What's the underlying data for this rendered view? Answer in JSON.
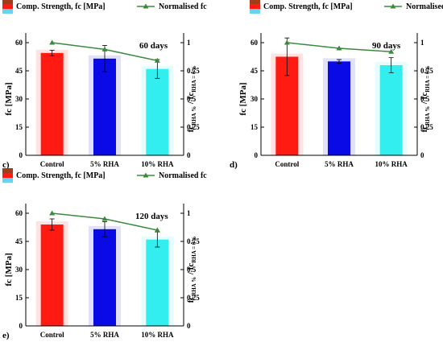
{
  "figure": {
    "legend": {
      "bars": "Comp. Strength, fc [MPa]",
      "line": "Normalised fc"
    },
    "y_label_left": "fc [MPa]",
    "y_label_right_main": "fc",
    "y_label_right_sub1": "RHA %",
    "y_label_right_mid": " / fc",
    "y_label_right_sub2": "RHA = 0%"
  },
  "colors": {
    "control": "#ff1a12",
    "rha5": "#0a0ae6",
    "rha10": "#33eeee",
    "line": "#3b8a3b",
    "legend_swatch_dark": "#a33c1a",
    "legend_swatch_red": "#ff1a12",
    "legend_swatch_light": "#69d2ee"
  },
  "chart_data": [
    {
      "type": "bar",
      "panel": "c)",
      "annotation": "60 days",
      "categories": [
        "Control",
        "5% RHA",
        "10% RHA"
      ],
      "series": [
        {
          "name": "Comp. Strength, fc [MPa]",
          "values": [
            54.5,
            51.5,
            46
          ],
          "errors": [
            1.5,
            7,
            5
          ]
        },
        {
          "name": "Normalised fc",
          "values": [
            1.0,
            0.94,
            0.84
          ],
          "axis": "right"
        }
      ],
      "y_left": {
        "lim": [
          0,
          60
        ],
        "ticks": [
          "0",
          "15",
          "30",
          "45",
          "60"
        ]
      },
      "y_right": {
        "lim": [
          0,
          1
        ],
        "ticks": [
          "0",
          "0.25",
          "0.5",
          "0.75",
          "1"
        ]
      }
    },
    {
      "type": "bar",
      "panel": "d)",
      "annotation": "90 days",
      "categories": [
        "Control",
        "5% RHA",
        "10% RHA"
      ],
      "series": [
        {
          "name": "Comp. Strength, fc [MPa]",
          "values": [
            52.5,
            50,
            48
          ],
          "errors": [
            10,
            1,
            4
          ]
        },
        {
          "name": "Normalised fc",
          "values": [
            1.0,
            0.95,
            0.92
          ],
          "axis": "right"
        }
      ],
      "y_left": {
        "lim": [
          0,
          60
        ],
        "ticks": [
          "0",
          "15",
          "30",
          "45",
          "60"
        ]
      },
      "y_right": {
        "lim": [
          0,
          1
        ],
        "ticks": [
          "0",
          "0.25",
          "0.5",
          "0.75",
          "1"
        ]
      }
    },
    {
      "type": "bar",
      "panel": "e)",
      "annotation": "120 days",
      "categories": [
        "Control",
        "5% RHA",
        "10% RHA"
      ],
      "series": [
        {
          "name": "Comp. Strength, fc [MPa]",
          "values": [
            54,
            51.5,
            46
          ],
          "errors": [
            3,
            4,
            4
          ]
        },
        {
          "name": "Normalised fc",
          "values": [
            1.0,
            0.95,
            0.85
          ],
          "axis": "right"
        }
      ],
      "y_left": {
        "lim": [
          0,
          60
        ],
        "ticks": [
          "0",
          "15",
          "30",
          "45",
          "60"
        ]
      },
      "y_right": {
        "lim": [
          0,
          1
        ],
        "ticks": [
          "0",
          "0.25",
          "0.5",
          "0.75",
          "1"
        ]
      }
    }
  ]
}
